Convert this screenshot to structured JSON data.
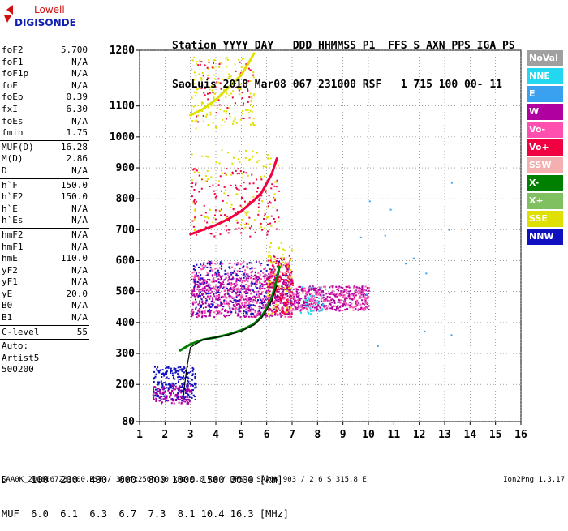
{
  "logo": {
    "line1": "Lowell",
    "line2": "DIGISONDE"
  },
  "header": {
    "line1": "Station YYYY DAY   DDD HHMMSS P1  FFS S AXN PPS IGA PS",
    "line2": "SaoLuis 2018 Mar08 067 231000 RSF   1 715 100 00- 11"
  },
  "params": [
    {
      "name": "foF2",
      "value": "5.700"
    },
    {
      "name": "foF1",
      "value": "N/A"
    },
    {
      "name": "foF1p",
      "value": "N/A"
    },
    {
      "name": "foE",
      "value": "N/A"
    },
    {
      "name": "foEp",
      "value": "0.39"
    },
    {
      "name": "fxI",
      "value": "6.30"
    },
    {
      "name": "foEs",
      "value": "N/A"
    },
    {
      "name": "fmin",
      "value": "1.75"
    },
    {
      "sep": true
    },
    {
      "name": "MUF(D)",
      "value": "16.28"
    },
    {
      "name": "M(D)",
      "value": "2.86"
    },
    {
      "name": "D",
      "value": "N/A"
    },
    {
      "sep": true
    },
    {
      "name": "h`F",
      "value": "150.0"
    },
    {
      "name": "h`F2",
      "value": "150.0"
    },
    {
      "name": "h`E",
      "value": "N/A"
    },
    {
      "name": "h`Es",
      "value": "N/A"
    },
    {
      "sep": true
    },
    {
      "name": "hmF2",
      "value": "N/A"
    },
    {
      "name": "hmF1",
      "value": "N/A"
    },
    {
      "name": "hmE",
      "value": "110.0"
    },
    {
      "name": "yF2",
      "value": "N/A"
    },
    {
      "name": "yF1",
      "value": "N/A"
    },
    {
      "name": "yE",
      "value": "20.0"
    },
    {
      "name": "B0",
      "value": "N/A"
    },
    {
      "name": "B1",
      "value": "N/A"
    },
    {
      "sep": true
    },
    {
      "name": "C-level",
      "value": "55"
    },
    {
      "sep": true
    },
    {
      "name": "Auto:",
      "value": ""
    },
    {
      "name": "Artist5",
      "value": ""
    },
    {
      "name": "500200",
      "value": ""
    }
  ],
  "legend": [
    {
      "label": "NoVal",
      "color": "#a0a0a0"
    },
    {
      "label": "NNE",
      "color": "#22d8f0"
    },
    {
      "label": "E",
      "color": "#3aa0f0"
    },
    {
      "label": "W",
      "color": "#b000a0"
    },
    {
      "label": "Vo-",
      "color": "#ff50b0"
    },
    {
      "label": "Vo+",
      "color": "#f00040"
    },
    {
      "label": "SSW",
      "color": "#f4b0b0"
    },
    {
      "label": "X-",
      "color": "#008000"
    },
    {
      "label": "X+",
      "color": "#80c060"
    },
    {
      "label": "SSE",
      "color": "#e0e000"
    },
    {
      "label": "NNW",
      "color": "#1010c0"
    }
  ],
  "bottom": {
    "line1": "D    100  200  400  600  800 1000 1500 3000 [km]",
    "line2": "MUF  6.0  6.1  6.3  6.7  7.3  8.1 10.4 16.3 [MHz]"
  },
  "footer": "SAA0K_2018067231000.RSF / 300fx256h 50 kHz 5.0 km / DPS-4 SAA0K 903 / 2.6 S 315.8 E",
  "version": "Ion2Png 1.3.17",
  "chart_data": {
    "type": "scatter",
    "title": "",
    "xlabel": "",
    "ylabel": "",
    "xlim": [
      1,
      16
    ],
    "ylim": [
      80,
      1280
    ],
    "x_ticks": [
      1,
      2,
      3,
      4,
      5,
      6,
      7,
      8,
      9,
      10,
      11,
      12,
      13,
      14,
      15,
      16
    ],
    "y_ticks": [
      80,
      200,
      300,
      400,
      500,
      600,
      700,
      800,
      900,
      1000,
      1100,
      1280
    ],
    "grid": true,
    "echo_bands": [
      {
        "name": "low",
        "x": [
          1.5,
          3.2
        ],
        "y": [
          150,
          260
        ],
        "color": "#1010c0",
        "n": 260
      },
      {
        "name": "low-mix",
        "x": [
          1.5,
          3.0
        ],
        "y": [
          140,
          200
        ],
        "color": "#b000a0",
        "n": 120
      },
      {
        "name": "main",
        "x": [
          3.0,
          7.0
        ],
        "y": [
          420,
          560
        ],
        "color": "#b000a0",
        "n": 700
      },
      {
        "name": "main-pink",
        "x": [
          3.0,
          7.0
        ],
        "y": [
          420,
          600
        ],
        "color": "#ff50b0",
        "n": 350
      },
      {
        "name": "main-blue",
        "x": [
          3.0,
          7.0
        ],
        "y": [
          430,
          600
        ],
        "color": "#1010c0",
        "n": 200
      },
      {
        "name": "f7-10",
        "x": [
          7.0,
          10.0
        ],
        "y": [
          440,
          520
        ],
        "color": "#b000a0",
        "n": 350
      },
      {
        "name": "f7-10-pink",
        "x": [
          7.0,
          10.0
        ],
        "y": [
          440,
          520
        ],
        "color": "#ff50b0",
        "n": 150
      },
      {
        "name": "hot-core",
        "x": [
          6.0,
          7.0
        ],
        "y": [
          430,
          620
        ],
        "color": "#f00040",
        "n": 180
      },
      {
        "name": "hot-yellow",
        "x": [
          6.0,
          7.0
        ],
        "y": [
          430,
          660
        ],
        "color": "#e0e000",
        "n": 70
      },
      {
        "name": "hot-cyan",
        "x": [
          7.3,
          8.3
        ],
        "y": [
          430,
          520
        ],
        "color": "#22d8f0",
        "n": 40
      },
      {
        "name": "upper-2nd",
        "x": [
          3.0,
          6.5
        ],
        "y": [
          680,
          900
        ],
        "color": "#f00040",
        "n": 150
      },
      {
        "name": "upper-2nd-y",
        "x": [
          3.0,
          6.5
        ],
        "y": [
          700,
          960
        ],
        "color": "#e0e000",
        "n": 110
      },
      {
        "name": "upper-3rd",
        "x": [
          3.0,
          5.5
        ],
        "y": [
          1030,
          1260
        ],
        "color": "#e0e000",
        "n": 160
      },
      {
        "name": "upper-3rd-r",
        "x": [
          3.0,
          5.5
        ],
        "y": [
          1050,
          1250
        ],
        "color": "#f00040",
        "n": 60
      },
      {
        "name": "sparse",
        "x": [
          9.0,
          13.5
        ],
        "y": [
          200,
          950
        ],
        "color": "#3aa0f0",
        "n": 14
      }
    ],
    "traces": [
      {
        "name": "1st-hop",
        "color": "#008000",
        "points": [
          [
            2.6,
            310
          ],
          [
            3.0,
            330
          ],
          [
            3.5,
            345
          ],
          [
            4.0,
            352
          ],
          [
            4.5,
            362
          ],
          [
            5.0,
            375
          ],
          [
            5.5,
            395
          ],
          [
            5.8,
            420
          ],
          [
            6.0,
            445
          ],
          [
            6.2,
            480
          ],
          [
            6.4,
            540
          ],
          [
            6.5,
            580
          ]
        ]
      },
      {
        "name": "2nd-hop",
        "color": "#f00040",
        "points": [
          [
            3.0,
            685
          ],
          [
            3.5,
            700
          ],
          [
            4.0,
            715
          ],
          [
            4.5,
            735
          ],
          [
            5.0,
            760
          ],
          [
            5.5,
            795
          ],
          [
            5.8,
            820
          ],
          [
            6.0,
            850
          ],
          [
            6.2,
            880
          ],
          [
            6.4,
            930
          ]
        ]
      },
      {
        "name": "3rd-hop",
        "color": "#e0e000",
        "points": [
          [
            3.0,
            1070
          ],
          [
            3.5,
            1090
          ],
          [
            4.0,
            1120
          ],
          [
            4.5,
            1160
          ],
          [
            5.0,
            1200
          ],
          [
            5.3,
            1240
          ],
          [
            5.5,
            1270
          ]
        ]
      },
      {
        "name": "profile",
        "color": "#000000",
        "points": [
          [
            2.7,
            150
          ],
          [
            2.85,
            250
          ],
          [
            3.0,
            320
          ],
          [
            3.5,
            345
          ],
          [
            4.0,
            352
          ],
          [
            4.5,
            360
          ],
          [
            5.0,
            372
          ],
          [
            5.5,
            392
          ],
          [
            5.8,
            415
          ],
          [
            6.0,
            440
          ],
          [
            6.2,
            470
          ],
          [
            6.4,
            520
          ]
        ]
      }
    ]
  }
}
